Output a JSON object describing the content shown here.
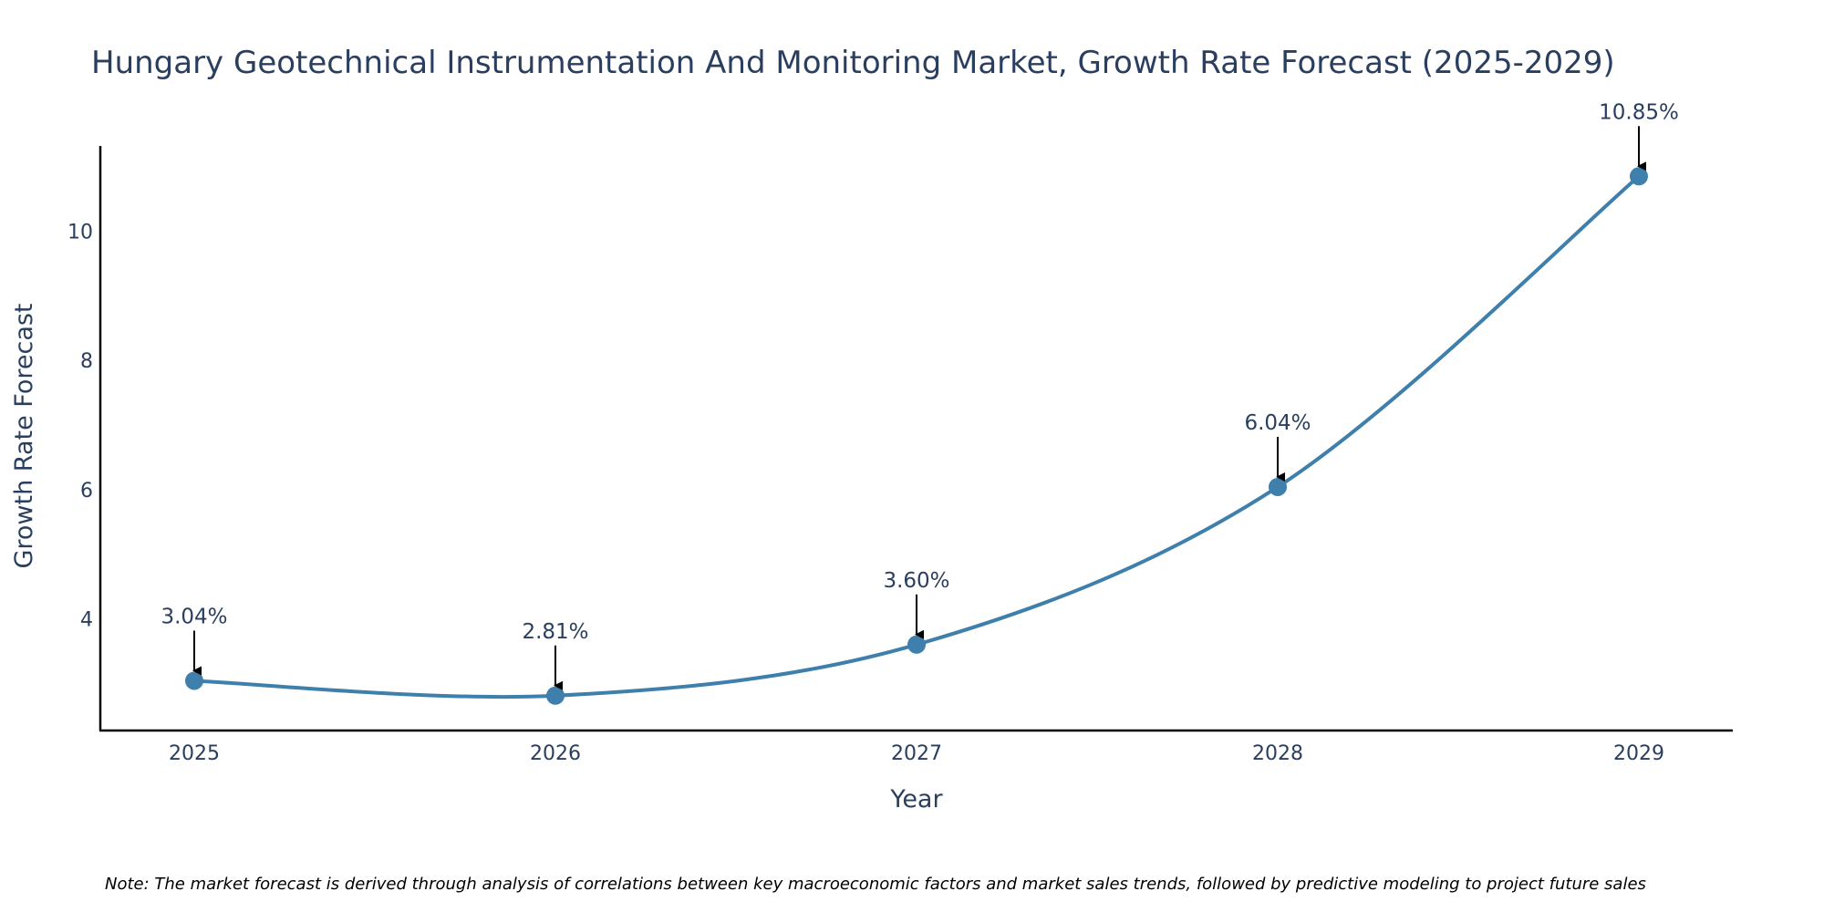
{
  "chart_data": {
    "type": "line",
    "title": "Hungary Geotechnical Instrumentation And Monitoring Market, Growth Rate Forecast (2025-2029)",
    "xlabel": "Year",
    "ylabel": "Growth Rate Forecast",
    "categories": [
      "2025",
      "2026",
      "2027",
      "2028",
      "2029"
    ],
    "series": [
      {
        "name": "Growth Rate Forecast",
        "values": [
          3.04,
          2.81,
          3.6,
          6.04,
          10.85
        ],
        "labels": [
          "3.04%",
          "2.81%",
          "3.60%",
          "6.04%",
          "10.85%"
        ]
      }
    ],
    "yticks": [
      4,
      6,
      8,
      10
    ],
    "ytick_labels": [
      "4",
      "6",
      "8",
      "10"
    ],
    "ylim": [
      2.27,
      11.32
    ],
    "grid": false,
    "line_shape": "spline",
    "annotations": "arrow pointing to each point with percentage label",
    "note": "Note: The market forecast is derived through analysis of correlations between key macroeconomic factors and market sales trends, followed by predictive modeling to project future sales",
    "colors": {
      "line": "#3e7fab",
      "marker": "#3e7fab",
      "text": "#2a3f5f",
      "axis": "#000000",
      "arrow": "#000000"
    }
  }
}
